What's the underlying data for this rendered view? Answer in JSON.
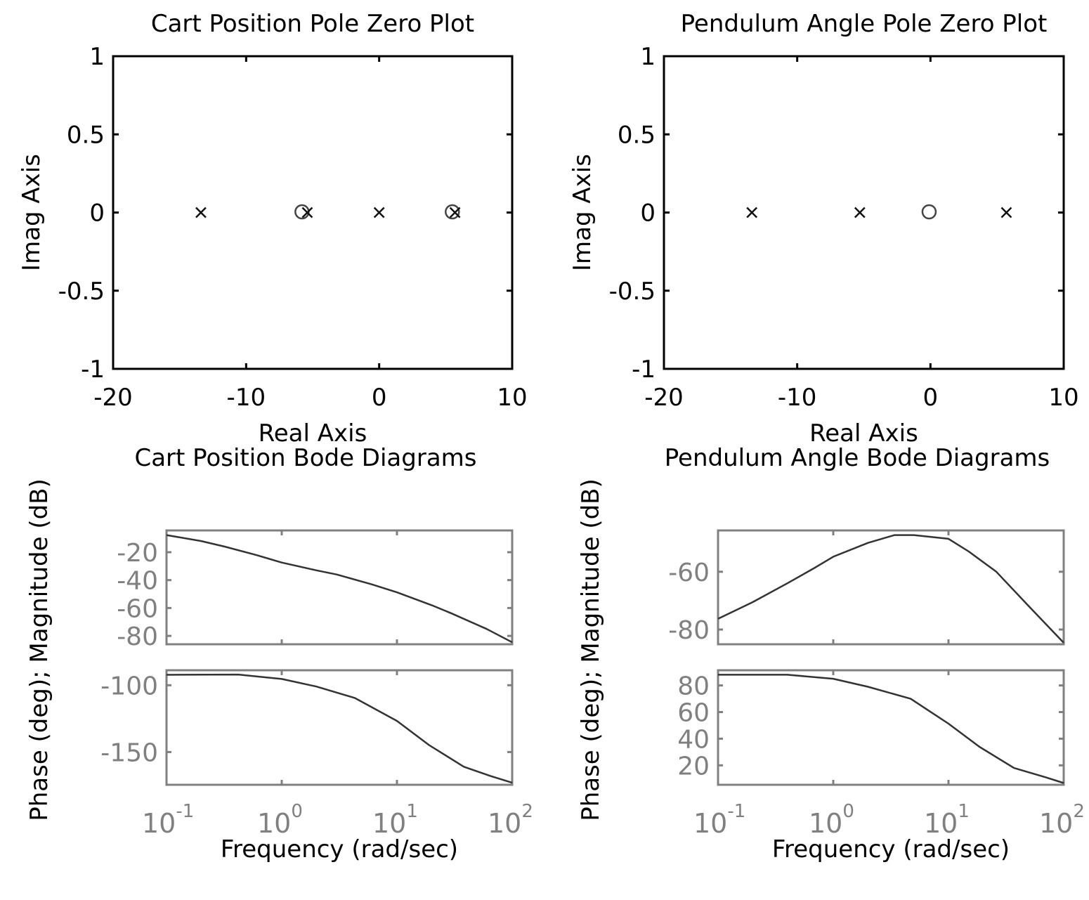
{
  "chart_data": [
    {
      "id": "cart-pz",
      "type": "scatter",
      "title": "Cart Position Pole Zero Plot",
      "xlabel": "Real Axis",
      "ylabel": "Imag Axis",
      "xlim": [
        -20,
        10
      ],
      "ylim": [
        -1,
        1
      ],
      "xticks": [
        -20,
        -10,
        0,
        10
      ],
      "xtick_labels": [
        "-20",
        "-10",
        "0",
        "10"
      ],
      "yticks": [
        1,
        0.5,
        0,
        -0.5,
        -1
      ],
      "ytick_labels": [
        "1",
        "0.5",
        "0",
        "-0.5",
        "-1"
      ],
      "poles": [
        [
          -13.4,
          0
        ],
        [
          -5.4,
          0
        ],
        [
          0,
          0
        ],
        [
          5.7,
          0
        ]
      ],
      "zeros": [
        [
          -5.8,
          0
        ],
        [
          5.5,
          0
        ]
      ]
    },
    {
      "id": "pend-pz",
      "type": "scatter",
      "title": "Pendulum Angle Pole Zero Plot",
      "xlabel": "Real Axis",
      "ylabel": "Imag Axis",
      "xlim": [
        -20,
        10
      ],
      "ylim": [
        -1,
        1
      ],
      "xticks": [
        -20,
        -10,
        0,
        10
      ],
      "xtick_labels": [
        "-20",
        "-10",
        "0",
        "10"
      ],
      "yticks": [
        1,
        0.5,
        0,
        -0.5,
        -1
      ],
      "ytick_labels": [
        "1",
        "0.5",
        "0",
        "-0.5",
        "-1"
      ],
      "poles": [
        [
          -13.4,
          0
        ],
        [
          -5.3,
          0
        ],
        [
          5.7,
          0
        ]
      ],
      "zeros": [
        [
          -0.1,
          0
        ]
      ]
    },
    {
      "id": "cart-bode",
      "type": "line",
      "title": "Cart Position Bode Diagrams",
      "ylabel": "Phase (deg); Magnitude (dB)",
      "xlabel": "Frequency (rad/sec)",
      "xscale": "log",
      "xlim": [
        0.1,
        100
      ],
      "xtick_base": "10",
      "xtick_exponents": [
        "-1",
        "0",
        "1",
        "2"
      ],
      "magnitude": {
        "ylim": [
          -86,
          -4.4
        ],
        "yticks": [
          -20,
          -40,
          -60,
          -80
        ],
        "ytick_labels": [
          "-20",
          "-40",
          "-60",
          "-80"
        ],
        "x": [
          0.1,
          0.2,
          0.32,
          0.6,
          1,
          2,
          3,
          6,
          10,
          20,
          30,
          60,
          100
        ],
        "y": [
          -7.7,
          -12,
          -16,
          -22,
          -27.4,
          -33,
          -36,
          -43,
          -48.8,
          -58,
          -64,
          -75,
          -84.6
        ]
      },
      "phase": {
        "ylim": [
          -174.5,
          -88.8
        ],
        "yticks": [
          -100,
          -150
        ],
        "ytick_labels": [
          "-100",
          "-150"
        ],
        "x": [
          0.1,
          0.42,
          1,
          2,
          4.3,
          10,
          19,
          38,
          65,
          100
        ],
        "y": [
          -92.2,
          -92,
          -95.3,
          -101,
          -109.5,
          -126.7,
          -144.8,
          -161,
          -168,
          -173
        ]
      }
    },
    {
      "id": "pend-bode",
      "type": "line",
      "title": "Pendulum Angle Bode Diagrams",
      "ylabel": "Phase (deg); Magnitude (dB)",
      "xlabel": "Frequency (rad/sec)",
      "xscale": "log",
      "xlim": [
        0.1,
        100
      ],
      "xtick_base": "10",
      "xtick_exponents": [
        "-1",
        "0",
        "1",
        "2"
      ],
      "magnitude": {
        "ylim": [
          -85.1,
          -45.7
        ],
        "yticks": [
          -60,
          -80
        ],
        "ytick_labels": [
          "-60",
          "-80"
        ],
        "x": [
          0.1,
          0.2,
          0.4,
          0.7,
          1,
          2,
          3.4,
          5,
          10,
          15,
          26,
          50,
          100
        ],
        "y": [
          -76.3,
          -70.5,
          -64,
          -58.5,
          -54.8,
          -50,
          -47.3,
          -47.3,
          -48.6,
          -53,
          -60,
          -72,
          -84.6
        ]
      },
      "phase": {
        "ylim": [
          5.4,
          91.4
        ],
        "yticks": [
          80,
          60,
          40,
          20
        ],
        "ytick_labels": [
          "80",
          "60",
          "40",
          "20"
        ],
        "x": [
          0.1,
          0.4,
          1,
          2,
          4.7,
          10,
          18.5,
          37,
          70,
          100
        ],
        "y": [
          88,
          88,
          85,
          79,
          70,
          51.3,
          34,
          18,
          11,
          6.7
        ]
      }
    }
  ]
}
